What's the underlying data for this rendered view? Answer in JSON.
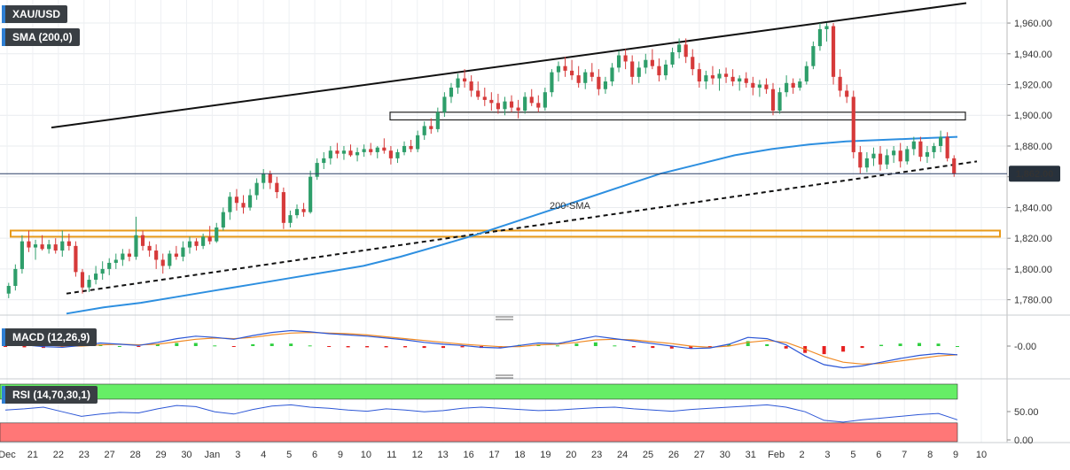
{
  "panels": {
    "symbol": "XAU/USD",
    "sma_label": "SMA (200,0)",
    "macd_label": "MACD (12,26,9)",
    "rsi_label": "RSI (14,70,30,1)"
  },
  "colors": {
    "bull": "#2e9e6a",
    "bear": "#d63a3a",
    "sma": "#2d8fe0",
    "macd_line": "#2b56d6",
    "signal_line": "#f08a24",
    "hist_pos": "#2fcf3f",
    "hist_neg": "#e62020",
    "rsi_line": "#2d57d6",
    "overbought_zone": "#66ee66",
    "oversold_zone": "#ff7777",
    "price_tag": "#27313c",
    "zone_border": "#e89a1a"
  },
  "chart_data": {
    "type": "candlestick",
    "price_axis": {
      "ticks": [
        "1,960.00",
        "1,940.00",
        "1,920.00",
        "1,900.00",
        "1,880.00",
        "1,860.00",
        "1,840.00",
        "1,820.00",
        "1,800.00",
        "1,780.00"
      ],
      "range": [
        1770,
        1975
      ]
    },
    "current_price": {
      "label": "1,862.00",
      "value": 1862
    },
    "x_labels": [
      "Dec",
      "21",
      "22",
      "23",
      "27",
      "28",
      "29",
      "30",
      "Jan",
      "3",
      "4",
      "5",
      "6",
      "9",
      "10",
      "11",
      "12",
      "13",
      "16",
      "17",
      "18",
      "19",
      "20",
      "23",
      "24",
      "25",
      "26",
      "27",
      "30",
      "31",
      "Feb",
      "2",
      "3",
      "5",
      "6",
      "7",
      "8",
      "9",
      "10"
    ],
    "sma_annotation": "200-SMA",
    "macd_axis": {
      "ticks": [
        "-0.00"
      ]
    },
    "rsi_axis": {
      "ticks": [
        "50.00",
        "0.00"
      ],
      "overbought": 70,
      "oversold": 30
    },
    "candles": [
      {
        "o": 1784,
        "h": 1791,
        "l": 1781,
        "c": 1789
      },
      {
        "o": 1789,
        "h": 1803,
        "l": 1786,
        "c": 1800
      },
      {
        "o": 1800,
        "h": 1822,
        "l": 1797,
        "c": 1818
      },
      {
        "o": 1818,
        "h": 1825,
        "l": 1811,
        "c": 1814
      },
      {
        "o": 1814,
        "h": 1819,
        "l": 1806,
        "c": 1816
      },
      {
        "o": 1816,
        "h": 1822,
        "l": 1812,
        "c": 1813
      },
      {
        "o": 1813,
        "h": 1819,
        "l": 1810,
        "c": 1816
      },
      {
        "o": 1816,
        "h": 1820,
        "l": 1810,
        "c": 1812
      },
      {
        "o": 1812,
        "h": 1825,
        "l": 1808,
        "c": 1818
      },
      {
        "o": 1818,
        "h": 1823,
        "l": 1812,
        "c": 1815
      },
      {
        "o": 1815,
        "h": 1818,
        "l": 1795,
        "c": 1798
      },
      {
        "o": 1798,
        "h": 1800,
        "l": 1784,
        "c": 1788
      },
      {
        "o": 1788,
        "h": 1796,
        "l": 1785,
        "c": 1793
      },
      {
        "o": 1793,
        "h": 1802,
        "l": 1790,
        "c": 1797
      },
      {
        "o": 1797,
        "h": 1805,
        "l": 1793,
        "c": 1800
      },
      {
        "o": 1800,
        "h": 1807,
        "l": 1796,
        "c": 1804
      },
      {
        "o": 1804,
        "h": 1810,
        "l": 1800,
        "c": 1806
      },
      {
        "o": 1806,
        "h": 1813,
        "l": 1802,
        "c": 1810
      },
      {
        "o": 1810,
        "h": 1813,
        "l": 1805,
        "c": 1808
      },
      {
        "o": 1808,
        "h": 1834,
        "l": 1806,
        "c": 1822
      },
      {
        "o": 1822,
        "h": 1825,
        "l": 1812,
        "c": 1815
      },
      {
        "o": 1815,
        "h": 1818,
        "l": 1808,
        "c": 1812
      },
      {
        "o": 1812,
        "h": 1816,
        "l": 1800,
        "c": 1806
      },
      {
        "o": 1806,
        "h": 1810,
        "l": 1797,
        "c": 1802
      },
      {
        "o": 1802,
        "h": 1812,
        "l": 1800,
        "c": 1810
      },
      {
        "o": 1810,
        "h": 1815,
        "l": 1806,
        "c": 1808
      },
      {
        "o": 1808,
        "h": 1818,
        "l": 1805,
        "c": 1814
      },
      {
        "o": 1814,
        "h": 1821,
        "l": 1810,
        "c": 1818
      },
      {
        "o": 1818,
        "h": 1820,
        "l": 1812,
        "c": 1815
      },
      {
        "o": 1815,
        "h": 1823,
        "l": 1813,
        "c": 1821
      },
      {
        "o": 1821,
        "h": 1828,
        "l": 1816,
        "c": 1818
      },
      {
        "o": 1818,
        "h": 1830,
        "l": 1817,
        "c": 1827
      },
      {
        "o": 1827,
        "h": 1840,
        "l": 1825,
        "c": 1837
      },
      {
        "o": 1837,
        "h": 1850,
        "l": 1832,
        "c": 1847
      },
      {
        "o": 1847,
        "h": 1852,
        "l": 1838,
        "c": 1843
      },
      {
        "o": 1843,
        "h": 1848,
        "l": 1836,
        "c": 1840
      },
      {
        "o": 1840,
        "h": 1852,
        "l": 1838,
        "c": 1848
      },
      {
        "o": 1848,
        "h": 1859,
        "l": 1845,
        "c": 1856
      },
      {
        "o": 1856,
        "h": 1865,
        "l": 1852,
        "c": 1862
      },
      {
        "o": 1862,
        "h": 1864,
        "l": 1852,
        "c": 1856
      },
      {
        "o": 1856,
        "h": 1860,
        "l": 1846,
        "c": 1850
      },
      {
        "o": 1850,
        "h": 1853,
        "l": 1826,
        "c": 1830
      },
      {
        "o": 1830,
        "h": 1838,
        "l": 1827,
        "c": 1835
      },
      {
        "o": 1835,
        "h": 1842,
        "l": 1833,
        "c": 1839
      },
      {
        "o": 1839,
        "h": 1843,
        "l": 1834,
        "c": 1837
      },
      {
        "o": 1837,
        "h": 1864,
        "l": 1836,
        "c": 1860
      },
      {
        "o": 1860,
        "h": 1872,
        "l": 1858,
        "c": 1869
      },
      {
        "o": 1869,
        "h": 1876,
        "l": 1865,
        "c": 1872
      },
      {
        "o": 1872,
        "h": 1880,
        "l": 1868,
        "c": 1877
      },
      {
        "o": 1877,
        "h": 1882,
        "l": 1872,
        "c": 1875
      },
      {
        "o": 1875,
        "h": 1880,
        "l": 1871,
        "c": 1877
      },
      {
        "o": 1877,
        "h": 1881,
        "l": 1873,
        "c": 1874
      },
      {
        "o": 1874,
        "h": 1879,
        "l": 1870,
        "c": 1876
      },
      {
        "o": 1876,
        "h": 1881,
        "l": 1873,
        "c": 1878
      },
      {
        "o": 1878,
        "h": 1882,
        "l": 1874,
        "c": 1876
      },
      {
        "o": 1876,
        "h": 1880,
        "l": 1872,
        "c": 1879
      },
      {
        "o": 1879,
        "h": 1885,
        "l": 1875,
        "c": 1877
      },
      {
        "o": 1877,
        "h": 1880,
        "l": 1868,
        "c": 1872
      },
      {
        "o": 1872,
        "h": 1878,
        "l": 1869,
        "c": 1876
      },
      {
        "o": 1876,
        "h": 1883,
        "l": 1874,
        "c": 1880
      },
      {
        "o": 1880,
        "h": 1884,
        "l": 1876,
        "c": 1878
      },
      {
        "o": 1878,
        "h": 1890,
        "l": 1876,
        "c": 1887
      },
      {
        "o": 1887,
        "h": 1896,
        "l": 1884,
        "c": 1893
      },
      {
        "o": 1893,
        "h": 1898,
        "l": 1888,
        "c": 1891
      },
      {
        "o": 1891,
        "h": 1905,
        "l": 1889,
        "c": 1902
      },
      {
        "o": 1902,
        "h": 1915,
        "l": 1899,
        "c": 1912
      },
      {
        "o": 1912,
        "h": 1921,
        "l": 1908,
        "c": 1918
      },
      {
        "o": 1918,
        "h": 1927,
        "l": 1914,
        "c": 1924
      },
      {
        "o": 1924,
        "h": 1930,
        "l": 1918,
        "c": 1922
      },
      {
        "o": 1922,
        "h": 1926,
        "l": 1912,
        "c": 1916
      },
      {
        "o": 1916,
        "h": 1922,
        "l": 1910,
        "c": 1912
      },
      {
        "o": 1912,
        "h": 1918,
        "l": 1906,
        "c": 1910
      },
      {
        "o": 1910,
        "h": 1915,
        "l": 1903,
        "c": 1908
      },
      {
        "o": 1908,
        "h": 1914,
        "l": 1901,
        "c": 1904
      },
      {
        "o": 1904,
        "h": 1912,
        "l": 1900,
        "c": 1909
      },
      {
        "o": 1909,
        "h": 1913,
        "l": 1902,
        "c": 1905
      },
      {
        "o": 1905,
        "h": 1910,
        "l": 1898,
        "c": 1903
      },
      {
        "o": 1903,
        "h": 1915,
        "l": 1901,
        "c": 1912
      },
      {
        "o": 1912,
        "h": 1917,
        "l": 1906,
        "c": 1908
      },
      {
        "o": 1908,
        "h": 1913,
        "l": 1902,
        "c": 1905
      },
      {
        "o": 1905,
        "h": 1918,
        "l": 1903,
        "c": 1915
      },
      {
        "o": 1915,
        "h": 1930,
        "l": 1912,
        "c": 1928
      },
      {
        "o": 1928,
        "h": 1935,
        "l": 1922,
        "c": 1932
      },
      {
        "o": 1932,
        "h": 1938,
        "l": 1925,
        "c": 1929
      },
      {
        "o": 1929,
        "h": 1936,
        "l": 1923,
        "c": 1926
      },
      {
        "o": 1926,
        "h": 1932,
        "l": 1918,
        "c": 1921
      },
      {
        "o": 1921,
        "h": 1930,
        "l": 1917,
        "c": 1928
      },
      {
        "o": 1928,
        "h": 1934,
        "l": 1922,
        "c": 1925
      },
      {
        "o": 1925,
        "h": 1930,
        "l": 1913,
        "c": 1917
      },
      {
        "o": 1917,
        "h": 1925,
        "l": 1914,
        "c": 1922
      },
      {
        "o": 1922,
        "h": 1934,
        "l": 1919,
        "c": 1931
      },
      {
        "o": 1931,
        "h": 1942,
        "l": 1928,
        "c": 1939
      },
      {
        "o": 1939,
        "h": 1943,
        "l": 1930,
        "c": 1935
      },
      {
        "o": 1935,
        "h": 1939,
        "l": 1920,
        "c": 1925
      },
      {
        "o": 1925,
        "h": 1935,
        "l": 1921,
        "c": 1931
      },
      {
        "o": 1931,
        "h": 1940,
        "l": 1927,
        "c": 1936
      },
      {
        "o": 1936,
        "h": 1943,
        "l": 1930,
        "c": 1932
      },
      {
        "o": 1932,
        "h": 1937,
        "l": 1922,
        "c": 1926
      },
      {
        "o": 1926,
        "h": 1936,
        "l": 1923,
        "c": 1933
      },
      {
        "o": 1933,
        "h": 1944,
        "l": 1931,
        "c": 1941
      },
      {
        "o": 1941,
        "h": 1950,
        "l": 1937,
        "c": 1946
      },
      {
        "o": 1946,
        "h": 1950,
        "l": 1934,
        "c": 1938
      },
      {
        "o": 1938,
        "h": 1943,
        "l": 1926,
        "c": 1930
      },
      {
        "o": 1930,
        "h": 1934,
        "l": 1918,
        "c": 1922
      },
      {
        "o": 1922,
        "h": 1929,
        "l": 1917,
        "c": 1926
      },
      {
        "o": 1926,
        "h": 1932,
        "l": 1920,
        "c": 1924
      },
      {
        "o": 1924,
        "h": 1930,
        "l": 1916,
        "c": 1927
      },
      {
        "o": 1927,
        "h": 1931,
        "l": 1921,
        "c": 1925
      },
      {
        "o": 1925,
        "h": 1930,
        "l": 1919,
        "c": 1922
      },
      {
        "o": 1922,
        "h": 1926,
        "l": 1916,
        "c": 1924
      },
      {
        "o": 1924,
        "h": 1928,
        "l": 1918,
        "c": 1921
      },
      {
        "o": 1921,
        "h": 1925,
        "l": 1913,
        "c": 1918
      },
      {
        "o": 1918,
        "h": 1923,
        "l": 1912,
        "c": 1920
      },
      {
        "o": 1920,
        "h": 1924,
        "l": 1914,
        "c": 1917
      },
      {
        "o": 1917,
        "h": 1921,
        "l": 1900,
        "c": 1903
      },
      {
        "o": 1903,
        "h": 1918,
        "l": 1901,
        "c": 1915
      },
      {
        "o": 1915,
        "h": 1926,
        "l": 1912,
        "c": 1921
      },
      {
        "o": 1921,
        "h": 1924,
        "l": 1914,
        "c": 1918
      },
      {
        "o": 1918,
        "h": 1924,
        "l": 1916,
        "c": 1922
      },
      {
        "o": 1922,
        "h": 1935,
        "l": 1920,
        "c": 1932
      },
      {
        "o": 1932,
        "h": 1948,
        "l": 1930,
        "c": 1945
      },
      {
        "o": 1945,
        "h": 1960,
        "l": 1942,
        "c": 1956
      },
      {
        "o": 1956,
        "h": 1960,
        "l": 1948,
        "c": 1958
      },
      {
        "o": 1958,
        "h": 1960,
        "l": 1920,
        "c": 1925
      },
      {
        "o": 1925,
        "h": 1930,
        "l": 1912,
        "c": 1916
      },
      {
        "o": 1916,
        "h": 1920,
        "l": 1908,
        "c": 1912
      },
      {
        "o": 1912,
        "h": 1916,
        "l": 1872,
        "c": 1876
      },
      {
        "o": 1876,
        "h": 1880,
        "l": 1862,
        "c": 1866
      },
      {
        "o": 1866,
        "h": 1876,
        "l": 1863,
        "c": 1872
      },
      {
        "o": 1872,
        "h": 1879,
        "l": 1867,
        "c": 1875
      },
      {
        "o": 1875,
        "h": 1880,
        "l": 1864,
        "c": 1868
      },
      {
        "o": 1868,
        "h": 1878,
        "l": 1865,
        "c": 1874
      },
      {
        "o": 1874,
        "h": 1880,
        "l": 1869,
        "c": 1877
      },
      {
        "o": 1877,
        "h": 1882,
        "l": 1866,
        "c": 1870
      },
      {
        "o": 1870,
        "h": 1880,
        "l": 1868,
        "c": 1878
      },
      {
        "o": 1878,
        "h": 1886,
        "l": 1874,
        "c": 1883
      },
      {
        "o": 1883,
        "h": 1886,
        "l": 1870,
        "c": 1873
      },
      {
        "o": 1873,
        "h": 1880,
        "l": 1869,
        "c": 1876
      },
      {
        "o": 1876,
        "h": 1882,
        "l": 1872,
        "c": 1880
      },
      {
        "o": 1880,
        "h": 1890,
        "l": 1876,
        "c": 1886
      },
      {
        "o": 1886,
        "h": 1889,
        "l": 1870,
        "c": 1872
      },
      {
        "o": 1872,
        "h": 1874,
        "l": 1860,
        "c": 1862
      }
    ],
    "sma": [
      1771,
      1775,
      1778,
      1782,
      1786,
      1790,
      1794,
      1798,
      1802,
      1808,
      1815,
      1822,
      1830,
      1838,
      1846,
      1854,
      1862,
      1868,
      1874,
      1878,
      1881,
      1883,
      1884,
      1885,
      1886
    ],
    "macd": [
      0.4,
      0.2,
      -0.1,
      -0.2,
      0.1,
      0.5,
      0.3,
      0.1,
      0.6,
      1.2,
      1.6,
      1.4,
      1.1,
      1.7,
      2.2,
      2.5,
      2.3,
      2.0,
      1.8,
      1.6,
      1.3,
      1.0,
      0.6,
      0.3,
      0.1,
      -0.2,
      -0.3,
      0.1,
      0.5,
      0.4,
      1.0,
      1.6,
      1.2,
      0.8,
      0.4,
      0.0,
      -0.4,
      -0.3,
      0.3,
      1.4,
      1.2,
      0.2,
      -1.6,
      -3.0,
      -3.5,
      -3.2,
      -2.6,
      -2.0,
      -1.5,
      -1.2,
      -1.4
    ],
    "signal": [
      0.5,
      0.4,
      0.2,
      0.0,
      0.0,
      0.2,
      0.3,
      0.2,
      0.3,
      0.7,
      1.1,
      1.3,
      1.2,
      1.4,
      1.8,
      2.1,
      2.2,
      2.1,
      2.0,
      1.8,
      1.5,
      1.2,
      0.9,
      0.6,
      0.3,
      0.1,
      -0.1,
      -0.1,
      0.2,
      0.3,
      0.6,
      1.0,
      1.1,
      1.0,
      0.7,
      0.4,
      0.0,
      -0.2,
      0.0,
      0.6,
      0.9,
      0.6,
      -0.5,
      -1.7,
      -2.6,
      -2.9,
      -2.8,
      -2.4,
      -2.0,
      -1.6,
      -1.4
    ],
    "rsi": [
      55,
      57,
      60,
      52,
      44,
      48,
      51,
      50,
      57,
      63,
      61,
      52,
      48,
      56,
      62,
      64,
      60,
      58,
      55,
      53,
      57,
      55,
      52,
      54,
      58,
      60,
      58,
      56,
      54,
      55,
      57,
      59,
      60,
      57,
      55,
      53,
      56,
      58,
      60,
      62,
      64,
      60,
      52,
      37,
      34,
      38,
      41,
      44,
      47,
      49,
      38
    ]
  }
}
